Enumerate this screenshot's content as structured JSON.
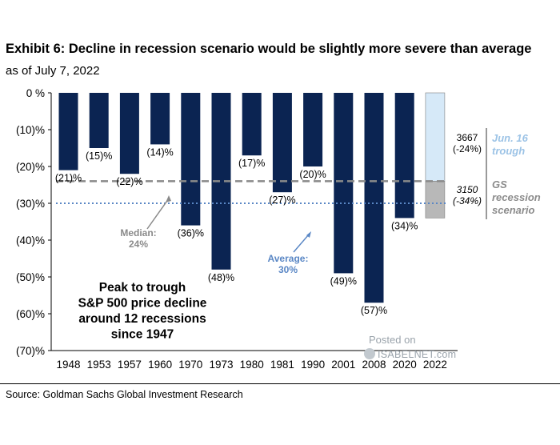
{
  "header": {
    "title": "Exhibit 6: Decline in recession scenario would be slightly more severe than average",
    "subtitle": "as of July 7, 2022"
  },
  "footer": {
    "source": "Source: Goldman Sachs Global Investment Research"
  },
  "watermark": {
    "line1": "Posted on",
    "line2": "ISABELNET.com"
  },
  "chart_data": {
    "type": "bar",
    "title": "",
    "xlabel": "",
    "ylabel": "",
    "ylim": [
      -70,
      0
    ],
    "grid": false,
    "y_ticks": [
      0,
      -10,
      -20,
      -30,
      -40,
      -50,
      -60,
      -70
    ],
    "y_tick_labels": [
      "0 %",
      "(10)%",
      "(20)%",
      "(30)%",
      "(40)%",
      "(50)%",
      "(60)%",
      "(70)%"
    ],
    "categories": [
      "1948",
      "1953",
      "1957",
      "1960",
      "1970",
      "1973",
      "1980",
      "1981",
      "1990",
      "2001",
      "2008",
      "2020",
      "2022"
    ],
    "values": [
      -21,
      -15,
      -22,
      -14,
      -36,
      -48,
      -17,
      -27,
      -20,
      -49,
      -57,
      -34,
      null
    ],
    "value_labels": [
      "(21)%",
      "(15)%",
      "(22)%",
      "(14)%",
      "(36)%",
      "(48)%",
      "(17)%",
      "(27)%",
      "(20)%",
      "(49)%",
      "(57)%",
      "(34)%",
      ""
    ],
    "bar_color": "#0b2452",
    "scenario_2022": {
      "segments": [
        {
          "from": 0,
          "to": -24,
          "color": "#d6e9f8"
        },
        {
          "from": -24,
          "to": -34,
          "color": "#b8b8b8"
        }
      ],
      "labels": [
        {
          "value": "3667",
          "pct": "(-24%)",
          "italic": false
        },
        {
          "value": "3150",
          "pct": "(-34%)",
          "italic": true
        }
      ]
    },
    "reference_lines": [
      {
        "name": "median",
        "value": -24,
        "color": "#8a8a8a",
        "style": "dashed",
        "label": [
          "Median:",
          "24%"
        ]
      },
      {
        "name": "average",
        "value": -30,
        "color": "#5a87c5",
        "style": "dotted",
        "label": [
          "Average:",
          "30%"
        ]
      }
    ],
    "legend": [
      {
        "lines": [
          "Jun. 16",
          "trough"
        ],
        "color": "#9cc3e6"
      },
      {
        "lines": [
          "GS",
          "recession",
          "scenario"
        ],
        "color": "#8c8c8c"
      }
    ],
    "annotation": [
      "Peak to trough",
      "S&P 500 price decline",
      "around 12 recessions",
      "since 1947"
    ]
  }
}
